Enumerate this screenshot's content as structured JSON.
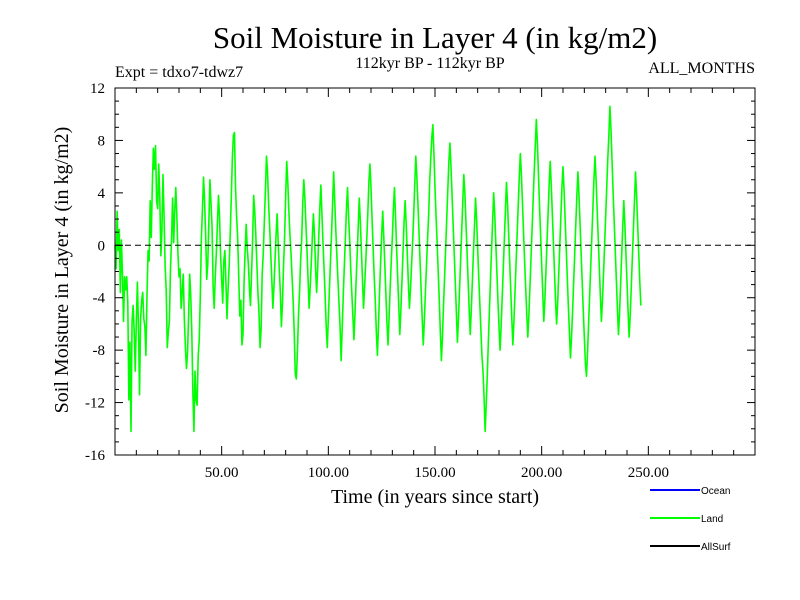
{
  "chart_data": {
    "type": "line",
    "title": "Soil Moisture in Layer 4 (in kg/m2)",
    "subtitle_left": "Expt = tdxo7-tdwz7",
    "subtitle_center": "112kyr BP - 112kyr BP",
    "subtitle_right": "ALL_MONTHS",
    "xlabel": "Time (in years since start)",
    "ylabel": "Soil Moisture in Layer 4 (in kg/m2)",
    "xlim": [
      0,
      300
    ],
    "ylim": [
      -16,
      12
    ],
    "x_ticks": [
      50,
      100,
      150,
      200,
      250
    ],
    "x_tick_labels": [
      "50.00",
      "100.00",
      "150.00",
      "200.00",
      "250.00"
    ],
    "y_ticks": [
      -16,
      -12,
      -8,
      -4,
      0,
      4,
      8,
      12
    ],
    "y_tick_labels": [
      "-16",
      "-12",
      "-8",
      "-4",
      "0",
      "4",
      "8",
      "12"
    ],
    "reference_line_y": 0,
    "grid": false,
    "legend_placement": "bottom-right",
    "legend": [
      {
        "name": "Ocean",
        "color": "#0000ff"
      },
      {
        "name": "Land",
        "color": "#00ff00"
      },
      {
        "name": "AllSurf",
        "color": "#000000"
      }
    ],
    "series": [
      {
        "name": "Land",
        "color": "#00ff00",
        "x_step": 0.5,
        "values": [
          0,
          -1.8,
          2.6,
          -0.4,
          1.2,
          -3.6,
          0.4,
          -2.2,
          -5.8,
          -2.4,
          -3.4,
          -2.4,
          -4.4,
          -11.8,
          -7.4,
          -14.2,
          -5.8,
          -4.6,
          -6.6,
          -9.6,
          -5.8,
          -2.8,
          -6.2,
          -11.4,
          -5.6,
          -4.2,
          -3.6,
          -5.6,
          -6.2,
          -8.4,
          -3.8,
          -0.4,
          -1.2,
          3.4,
          0.6,
          4.6,
          7.4,
          5.8,
          7.6,
          3.4,
          2.8,
          6.2,
          3.6,
          -0.8,
          1.2,
          5.4,
          2.2,
          -1.6,
          -3.4,
          -7.8,
          -6.6,
          -5.8,
          -1.8,
          0.4,
          3.6,
          0.2,
          2.6,
          4.4,
          2.2,
          -0.6,
          -2.4,
          -1.8,
          -4.8,
          -3.6,
          -2.2,
          -5.6,
          -7.8,
          -9.4,
          -8.2,
          -5.4,
          -2.2,
          -3.8,
          -6.6,
          -11.2,
          -14.2,
          -9.6,
          -11.8,
          -12.2,
          -8.4,
          -7.2,
          -3.8,
          0.6,
          2.8,
          5.2,
          3.4,
          0.8,
          -2.6,
          -1.4,
          1.8,
          5.0,
          3.2,
          1.4,
          -3.2,
          -4.8,
          -2.4,
          -0.6,
          1.6,
          3.8,
          2.2,
          -0.8,
          -2.6,
          -4.4,
          -1.2,
          -0.4,
          -2.8,
          -5.6,
          -3.4,
          -1.6,
          0.8,
          3.6,
          6.6,
          8.4,
          8.6,
          4.4,
          2.2,
          0.6,
          -2.4,
          -5.4,
          -4.2,
          -7.6,
          -6.8,
          -2.8,
          -0.4,
          1.6,
          -0.2,
          -1.4,
          -3.2,
          -4.6,
          -2.2,
          0.4,
          3.8,
          2.6,
          0.8,
          -1.4,
          -3.6,
          -5.2,
          -7.8,
          -6.4,
          -2.2,
          -0.6,
          1.8,
          4.2,
          6.8,
          5.6,
          3.2,
          1.4,
          -0.6,
          -2.6,
          -4.8,
          -3.2,
          -1.2,
          0.8,
          2.4,
          0.2,
          -1.8,
          -3.6,
          -6.2,
          -4.4,
          -1.6,
          0.6,
          3.8,
          6.4,
          4.8,
          2.6,
          0.8,
          -0.6,
          -2.4,
          -4.2,
          -6.6,
          -9.8,
          -10.2,
          -8.2,
          -5.4,
          -3.6,
          -1.2,
          0.4,
          3.2,
          5.0,
          3.6,
          1.6,
          -0.4,
          -2.6,
          -4.8,
          -3.2,
          -1.4,
          0.6,
          2.4,
          0.8,
          -1.6,
          -3.6,
          -1.8,
          0.6,
          2.8,
          4.6,
          2.4,
          0.2,
          -1.8,
          -3.8,
          -6.2,
          -7.8,
          -5.6,
          -3.4,
          -1.2,
          0.8,
          3.2,
          5.6,
          3.4,
          1.2,
          -0.8,
          -2.6,
          -4.4,
          -6.2,
          -8.8,
          -6.4,
          -3.8,
          -1.6,
          0.6,
          2.8,
          4.4,
          2.2,
          0.4,
          -1.8,
          -3.6,
          -5.4,
          -7.2,
          -5.2,
          -2.8,
          -0.8,
          1.4,
          3.6,
          1.8,
          -0.4,
          -2.6,
          -4.8,
          -3.2,
          -1.4,
          0.4,
          2.4,
          4.8,
          6.2,
          4.4,
          2.0,
          -0.2,
          -2.4,
          -4.2,
          -6.6,
          -8.4,
          -6.2,
          -3.6,
          -1.4,
          0.8,
          2.6,
          0.6,
          -1.6,
          -3.8,
          -6.0,
          -7.6,
          -5.4,
          -3.2,
          -1.2,
          0.6,
          2.8,
          4.4,
          2.2,
          -0.2,
          -2.4,
          -4.6,
          -6.8,
          -5.0,
          -2.8,
          -0.6,
          1.8,
          3.4,
          1.6,
          -0.6,
          -2.8,
          -4.8,
          -3.4,
          -1.6,
          0.2,
          2.2,
          4.6,
          6.8,
          5.2,
          3.2,
          1.0,
          -1.2,
          -3.4,
          -5.6,
          -7.6,
          -5.8,
          -3.6,
          -1.6,
          0.4,
          2.2,
          4.8,
          6.6,
          8.2,
          9.2,
          7.0,
          4.4,
          2.2,
          0.2,
          -2.0,
          -4.2,
          -6.6,
          -8.8,
          -7.0,
          -4.6,
          -2.4,
          -0.2,
          2.0,
          4.2,
          6.4,
          7.8,
          6.0,
          3.8,
          1.6,
          -0.6,
          -2.8,
          -5.0,
          -7.4,
          -5.6,
          -3.4,
          -1.2,
          1.0,
          3.2,
          5.4,
          4.0,
          1.8,
          -0.4,
          -2.6,
          -4.8,
          -6.8,
          -5.0,
          -2.8,
          -0.6,
          1.4,
          3.6,
          2.0,
          -0.2,
          -2.4,
          -4.4,
          -6.4,
          -8.4,
          -9.6,
          -11.6,
          -14.2,
          -12.2,
          -10.0,
          -7.4,
          -5.0,
          -2.6,
          -0.4,
          1.8,
          4.0,
          2.4,
          0.2,
          -2.0,
          -4.2,
          -6.2,
          -8.0,
          -6.2,
          -4.0,
          -1.8,
          0.4,
          2.6,
          4.8,
          3.2,
          1.0,
          -1.2,
          -3.4,
          -5.6,
          -7.6,
          -5.8,
          -3.6,
          -1.4,
          0.8,
          3.0,
          5.2,
          7.0,
          5.4,
          3.2,
          1.0,
          -1.2,
          -3.2,
          -5.2,
          -7.0,
          -5.4,
          -3.2,
          -1.0,
          1.2,
          3.4,
          5.6,
          7.6,
          9.6,
          7.8,
          5.4,
          3.0,
          0.8,
          -1.4,
          -3.6,
          -5.8,
          -4.2,
          -2.0,
          0.2,
          2.4,
          4.6,
          6.4,
          4.6,
          2.4,
          0.2,
          -2.0,
          -4.2,
          -6.0,
          -4.4,
          -2.2,
          0.0,
          2.2,
          4.4,
          6.0,
          4.2,
          2.0,
          -0.2,
          -2.4,
          -4.6,
          -6.6,
          -8.6,
          -7.0,
          -5.0,
          -2.8,
          -0.6,
          1.6,
          3.8,
          5.6,
          3.8,
          1.6,
          -0.6,
          -2.8,
          -5.0,
          -7.0,
          -9.0,
          -10.0,
          -8.2,
          -6.0,
          -3.8,
          -1.6,
          0.6,
          2.8,
          5.0,
          6.8,
          5.0,
          2.8,
          0.6,
          -1.6,
          -3.8,
          -5.8,
          -4.2,
          -2.2,
          0.0,
          2.2,
          4.4,
          6.6,
          8.4,
          10.6,
          8.8,
          6.4,
          4.0,
          1.8,
          -0.4,
          -2.6,
          -4.8,
          -6.8,
          -5.2,
          -3.0,
          -0.8,
          1.4,
          3.4,
          1.6,
          -0.6,
          -2.8,
          -5.0,
          -7.0,
          -5.4,
          -3.2,
          -1.0,
          1.2,
          3.4,
          5.6,
          3.8,
          1.6,
          -0.6,
          -2.8,
          -4.6
        ]
      }
    ]
  }
}
